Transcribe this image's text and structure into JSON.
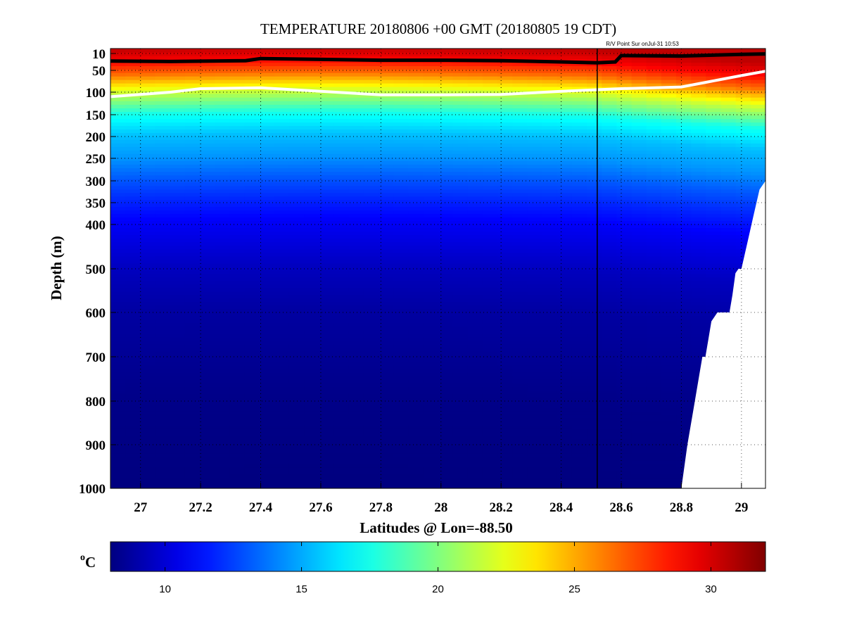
{
  "chart_data": {
    "type": "heatmap",
    "title": "TEMPERATURE 20180806 +00 GMT (20180805 19 CDT)",
    "annotation": "R/V Point Sur onJul-31 10:53",
    "xlabel": "Latitudes @ Lon=-88.50",
    "ylabel": "Depth (m)",
    "colorbar_label": "oC",
    "xlim": [
      26.9,
      29.08
    ],
    "ylim": [
      1000,
      0
    ],
    "x_ticks": [
      27,
      27.2,
      27.4,
      27.6,
      27.8,
      28,
      28.2,
      28.4,
      28.6,
      28.8,
      29
    ],
    "x_tick_labels": [
      "27",
      "27.2",
      "27.4",
      "27.6",
      "27.8",
      "28",
      "28.2",
      "28.4",
      "28.6",
      "28.8",
      "29"
    ],
    "y_ticks": [
      10,
      50,
      100,
      150,
      200,
      250,
      300,
      350,
      400,
      500,
      600,
      700,
      800,
      900,
      1000
    ],
    "y_tick_labels": [
      "10",
      "50",
      "100",
      "150",
      "200",
      "250",
      "300",
      "350",
      "400",
      "500",
      "600",
      "700",
      "800",
      "900",
      "1000"
    ],
    "colorbar": {
      "clim": [
        8,
        32
      ],
      "ticks": [
        10,
        15,
        20,
        25,
        30
      ],
      "tick_labels": [
        "10",
        "15",
        "20",
        "25",
        "30"
      ],
      "colormap": "jet"
    },
    "vertical_line_lat": 28.52,
    "grid": true,
    "temperature_profile": {
      "depths": [
        0,
        10,
        30,
        60,
        100,
        150,
        200,
        250,
        300,
        350,
        400,
        500,
        600,
        800,
        1000
      ],
      "temps": [
        30.5,
        30.0,
        29.0,
        26.5,
        22.0,
        17.5,
        15.5,
        14.5,
        13.0,
        11.8,
        10.8,
        9.5,
        8.8,
        8.2,
        8.0
      ]
    },
    "black_isotherm": {
      "lats": [
        26.9,
        27.1,
        27.35,
        27.4,
        27.6,
        27.8,
        28.0,
        28.2,
        28.4,
        28.52,
        28.58,
        28.6,
        28.8,
        29.0,
        29.08
      ],
      "depths": [
        28,
        29,
        27,
        22,
        24,
        26,
        26,
        27,
        30,
        32,
        30,
        15,
        16,
        12,
        11
      ]
    },
    "white_isotherm": {
      "lats": [
        26.9,
        27.1,
        27.2,
        27.4,
        27.6,
        27.8,
        28.0,
        28.2,
        28.4,
        28.6,
        28.8,
        28.9,
        29.0,
        29.08
      ],
      "depths": [
        110,
        100,
        92,
        90,
        98,
        106,
        106,
        105,
        98,
        92,
        88,
        75,
        62,
        52
      ]
    },
    "seafloor": {
      "lats": [
        28.8,
        28.82,
        28.84,
        28.86,
        28.87,
        28.88,
        28.88,
        28.89,
        28.9,
        28.92,
        28.95,
        28.96,
        28.97,
        28.98,
        28.99,
        29.0,
        29.02,
        29.04,
        29.06,
        29.08
      ],
      "depths": [
        1000,
        900,
        820,
        740,
        700,
        700,
        700,
        660,
        620,
        600,
        600,
        600,
        560,
        510,
        500,
        500,
        440,
        380,
        320,
        300
      ]
    }
  }
}
